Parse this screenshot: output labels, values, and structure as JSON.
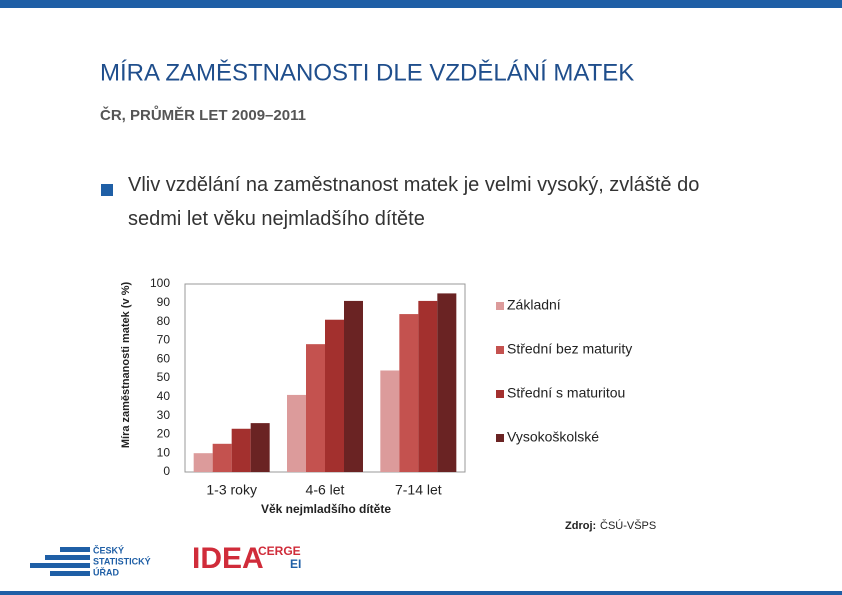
{
  "header": {
    "title": "MÍRA ZAMĚSTNANOSTI DLE VZDĚLÁNÍ MATEK",
    "subtitle": "ČR, PRŮMĚR LET 2009–2011"
  },
  "bullet": "Vliv vzdělání na zaměstnanost matek je velmi vysoký, zvláště do sedmi let věku nejmladšího dítěte",
  "chart_data": {
    "type": "bar",
    "y_label": "Míra zaměstnanosti matek (v %)",
    "x_label": "Věk nejmladšího dítěte",
    "categories": [
      "1-3 roky",
      "4-6 let",
      "7-14 let"
    ],
    "series": [
      {
        "name": "Základní",
        "color": "#dc9b9b",
        "values": [
          10,
          41,
          54
        ]
      },
      {
        "name": "Střední bez maturity",
        "color": "#c4524f",
        "values": [
          15,
          68,
          84
        ]
      },
      {
        "name": "Střední s maturitou",
        "color": "#a3302e",
        "values": [
          23,
          81,
          91
        ]
      },
      {
        "name": "Vysokoškolské",
        "color": "#6a2323",
        "values": [
          26,
          91,
          95
        ]
      }
    ],
    "ylim": [
      0,
      100
    ],
    "yticks": [
      0,
      10,
      20,
      30,
      40,
      50,
      60,
      70,
      80,
      90,
      100
    ],
    "grid": false,
    "legend": "right"
  },
  "source": {
    "label": "Zdroj:",
    "text": "ČSÚ-VŠPS"
  },
  "logos": {
    "csu": [
      "ČESKÝ",
      "STATISTICKÝ",
      "ÚŘAD"
    ],
    "idea": "IDEA",
    "cerge": [
      "CERGE",
      "EI"
    ]
  }
}
